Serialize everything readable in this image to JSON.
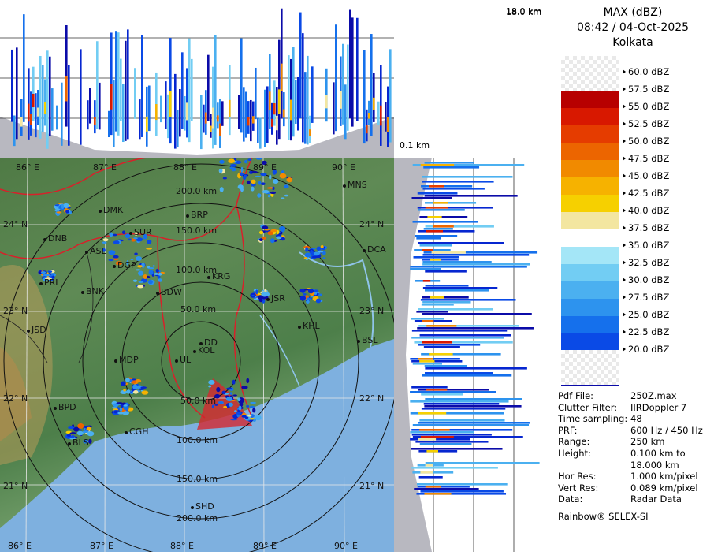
{
  "colors": {
    "bands": [
      "#0b0ba8",
      "#0626d0",
      "#0a4ae6",
      "#1570ec",
      "#2d93ee",
      "#4bb0f0",
      "#72cdf3",
      "#a4e6f7",
      "#ffffff",
      "#f3e6a0",
      "#f6d000",
      "#f6b200",
      "#f18a00",
      "#ec6500",
      "#e53c00",
      "#d81800",
      "#b70000",
      "#ffffff"
    ],
    "land": "#5b8a50",
    "sea": "#7aaee0",
    "border": "#d8202a"
  },
  "header": {
    "product": "MAX (dBZ)",
    "datetime": "08:42 / 04-Oct-2025",
    "site": "Kolkata"
  },
  "cross_section": {
    "max_height_label": "18.0 km",
    "min_height_label": "0.1 km"
  },
  "legend": [
    "60.0 dBZ",
    "57.5 dBZ",
    "55.0 dBZ",
    "52.5 dBZ",
    "50.0 dBZ",
    "47.5 dBZ",
    "45.0 dBZ",
    "42.5 dBZ",
    "40.0 dBZ",
    "37.5 dBZ",
    "35.0 dBZ",
    "32.5 dBZ",
    "30.0 dBZ",
    "27.5 dBZ",
    "25.0 dBZ",
    "22.5 dBZ",
    "20.0 dBZ"
  ],
  "meta": [
    {
      "key": "Pdf File:",
      "value": "250Z.max"
    },
    {
      "key": "Clutter Filter:",
      "value": "IIRDoppler 7"
    },
    {
      "key": "Time sampling:",
      "value": "48"
    },
    {
      "key": "PRF:",
      "value": "600 Hz / 450 Hz"
    },
    {
      "key": "Range:",
      "value": "250 km"
    },
    {
      "key": "Height:",
      "value": "0.100 km to"
    },
    {
      "key": "",
      "value": "18.000 km"
    },
    {
      "key": "Hor Res:",
      "value": "1.000 km/pixel"
    },
    {
      "key": "Vert Res:",
      "value": "0.089 km/pixel"
    },
    {
      "key": "Data:",
      "value": "Radar Data"
    }
  ],
  "footer": "Rainbow® SELEX-SI",
  "map": {
    "lon_labels_top": [
      "86° E",
      "87° E",
      "88° E",
      "89° E",
      "90° E"
    ],
    "lon_labels_bottom": [
      "86° E",
      "87° E",
      "88° E",
      "89° E",
      "90° E"
    ],
    "lat_labels_left": [
      "24° N",
      "23° N",
      "22° N",
      "21° N"
    ],
    "lat_labels_right": [
      "24° N",
      "23° N",
      "22° N",
      "21° N"
    ],
    "range_rings": [
      "50.0 km",
      "100.0 km",
      "150.0 km",
      "200.0 km"
    ],
    "range_rings_top": [
      "200.0 km",
      "150.0 km",
      "100.0 km",
      "50.0 km"
    ],
    "range_rings_bottom": [
      "50.0 km",
      "100.0 km",
      "150.0 km",
      "200.0 km"
    ],
    "cities": [
      "MNS",
      "DMK",
      "BRP",
      "DNB",
      "SUR",
      "ASL",
      "DGP",
      "KRG",
      "PRL",
      "BNK",
      "BDW",
      "JSR",
      "KHL",
      "JSD",
      "DD",
      "KOL",
      "BSL",
      "MDP",
      "UL",
      "BPD",
      "DCA",
      "CGH",
      "BLS",
      "SHD"
    ]
  }
}
